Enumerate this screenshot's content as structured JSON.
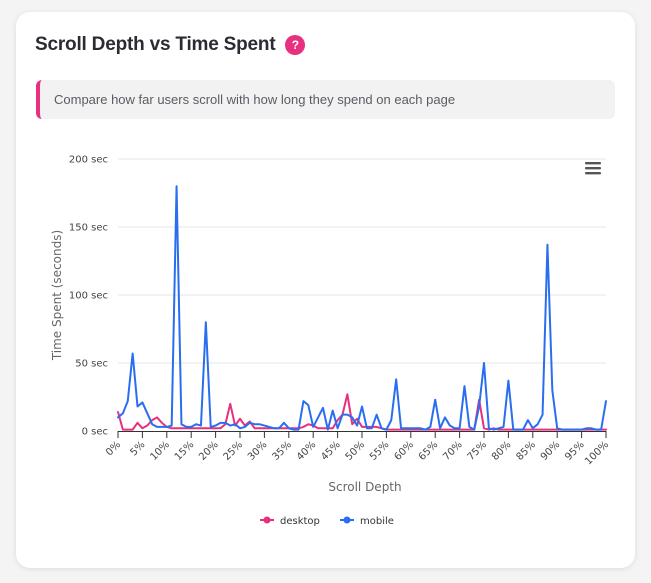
{
  "card": {
    "title": "Scroll Depth vs Time Spent",
    "help_label": "?",
    "description": "Compare how far users scroll with how long they spend on each page"
  },
  "colors": {
    "desktop": "#e8307f",
    "mobile": "#2a6ef0",
    "accent": "#e8307f"
  },
  "menu_icon": "hamburger-menu-icon",
  "chart_data": {
    "type": "line",
    "xlabel": "Scroll Depth",
    "ylabel": "Time Spent (seconds)",
    "ylim": [
      0,
      200
    ],
    "y_ticks": [
      {
        "value": 0,
        "label": "0 sec"
      },
      {
        "value": 50,
        "label": "50 sec"
      },
      {
        "value": 100,
        "label": "100 sec"
      },
      {
        "value": 150,
        "label": "150 sec"
      },
      {
        "value": 200,
        "label": "200 sec"
      }
    ],
    "x_ticks": [
      "0%",
      "5%",
      "10%",
      "15%",
      "20%",
      "25%",
      "30%",
      "35%",
      "40%",
      "45%",
      "50%",
      "55%",
      "60%",
      "65%",
      "70%",
      "75%",
      "80%",
      "85%",
      "90%",
      "95%",
      "100%"
    ],
    "grid": true,
    "legend_position": "bottom-center",
    "series": [
      {
        "name": "desktop",
        "values": [
          14,
          1,
          1,
          1,
          6,
          2,
          4,
          8,
          10,
          6,
          3,
          2,
          2,
          2,
          2,
          2,
          2,
          2,
          2,
          2,
          2,
          2,
          5,
          20,
          4,
          9,
          4,
          7,
          2,
          2,
          2,
          2,
          2,
          2,
          2,
          2,
          2,
          2,
          3,
          5,
          4,
          2,
          2,
          2,
          2,
          8,
          12,
          27,
          5,
          9,
          3,
          3,
          3,
          3,
          2,
          1,
          1,
          1,
          1,
          1,
          1,
          1,
          1,
          1,
          1,
          1,
          1,
          1,
          1,
          1,
          1,
          1,
          1,
          1,
          23,
          2,
          1,
          2,
          1,
          1,
          1,
          1,
          1,
          1,
          1,
          1,
          1,
          1,
          1,
          1,
          1,
          1,
          1,
          1,
          1,
          1,
          1,
          1,
          1,
          1,
          1
        ]
      },
      {
        "name": "mobile",
        "values": [
          10,
          13,
          22,
          57,
          18,
          21,
          13,
          5,
          3,
          3,
          3,
          4,
          180,
          5,
          3,
          3,
          5,
          4,
          80,
          3,
          4,
          6,
          6,
          4,
          5,
          2,
          3,
          6,
          5,
          5,
          4,
          3,
          2,
          2,
          6,
          2,
          1,
          1,
          22,
          19,
          3,
          10,
          17,
          1,
          15,
          2,
          12,
          12,
          10,
          4,
          18,
          2,
          2,
          12,
          2,
          1,
          8,
          38,
          2,
          2,
          2,
          2,
          2,
          1,
          3,
          23,
          2,
          10,
          4,
          2,
          2,
          33,
          3,
          1,
          18,
          50,
          2,
          1,
          2,
          3,
          37,
          1,
          1,
          1,
          8,
          2,
          5,
          12,
          137,
          30,
          2,
          1,
          1,
          1,
          1,
          1,
          2,
          2,
          1,
          1,
          22
        ]
      }
    ]
  }
}
